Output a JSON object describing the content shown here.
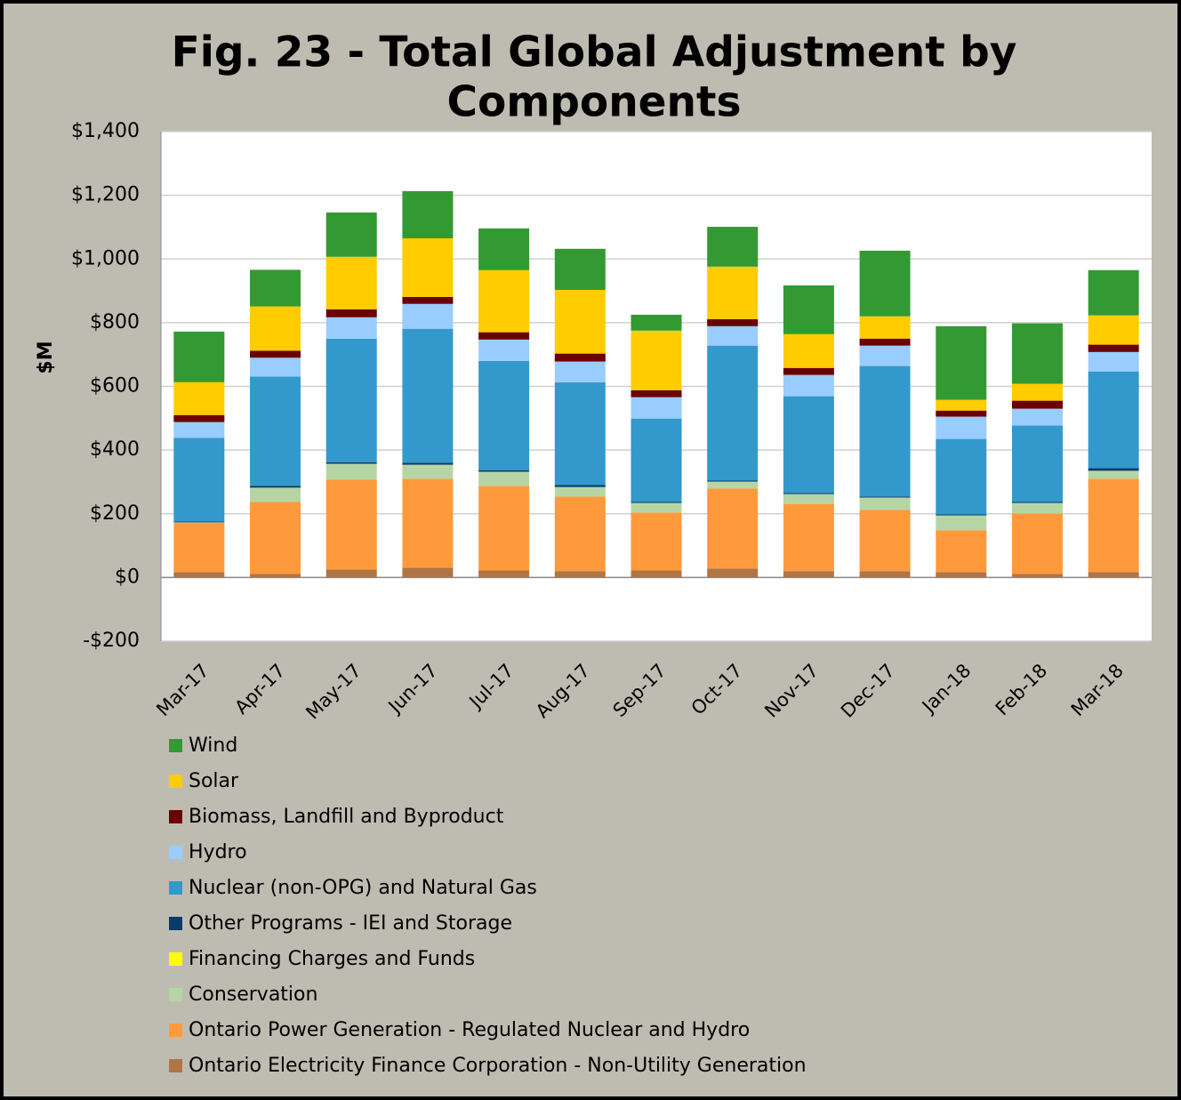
{
  "chart_data": {
    "type": "stacked_bar",
    "title": "Fig. 23 - Total Global Adjustment by",
    "title_line2": "Components",
    "y_label": "$M",
    "categories": [
      "Mar-17",
      "Apr-17",
      "May-17",
      "Jun-17",
      "Jul-17",
      "Aug-17",
      "Sep-17",
      "Oct-17",
      "Nov-17",
      "Dec-17",
      "Jan-18",
      "Feb-18",
      "Mar-18"
    ],
    "series": [
      {
        "name": "Ontario Electricity Finance Corporation - Non-Utility Generation",
        "color": "#b07545",
        "values": [
          17,
          11,
          25,
          31,
          22,
          20,
          22,
          28,
          20,
          20,
          17,
          11,
          17
        ]
      },
      {
        "name": "Ontario Power Generation - Regulated Nuclear and Hydro",
        "color": "#ff9a3c",
        "values": [
          153,
          226,
          282,
          279,
          265,
          234,
          182,
          251,
          211,
          192,
          131,
          190,
          293
        ]
      },
      {
        "name": "Conservation",
        "color": "#b5d6a4",
        "values": [
          3,
          45,
          50,
          44,
          45,
          30,
          30,
          22,
          31,
          39,
          47,
          33,
          25
        ]
      },
      {
        "name": "Financing Charges and Funds",
        "color": "#ffff00",
        "values": [
          0,
          0,
          0,
          0,
          0,
          0,
          0,
          0,
          0,
          0,
          0,
          0,
          0
        ]
      },
      {
        "name": "Other Programs - IEI and Storage",
        "color": "#0a3a6b",
        "values": [
          3,
          6,
          5,
          6,
          5,
          6,
          3,
          3,
          3,
          3,
          3,
          3,
          8
        ]
      },
      {
        "name": "Nuclear (non-OPG) and Natural Gas",
        "color": "#3399cc",
        "values": [
          262,
          343,
          388,
          421,
          343,
          323,
          262,
          424,
          304,
          410,
          237,
          240,
          304
        ]
      },
      {
        "name": "Hydro",
        "color": "#99ccff",
        "values": [
          50,
          59,
          67,
          78,
          67,
          65,
          67,
          61,
          67,
          64,
          70,
          53,
          61
        ]
      },
      {
        "name": "Biomass, Landfill and Byproduct",
        "color": "#6b0000",
        "values": [
          22,
          22,
          25,
          22,
          23,
          25,
          22,
          22,
          22,
          22,
          19,
          25,
          23
        ]
      },
      {
        "name": "Solar",
        "color": "#ffcc00",
        "values": [
          103,
          139,
          165,
          184,
          195,
          200,
          187,
          165,
          106,
          70,
          34,
          53,
          92
        ]
      },
      {
        "name": "Wind",
        "color": "#339933",
        "values": [
          159,
          115,
          139,
          148,
          131,
          129,
          50,
          125,
          153,
          206,
          231,
          190,
          142
        ]
      }
    ],
    "ylim": [
      -200,
      1400
    ],
    "yticks": [
      {
        "value": -200,
        "label": "-$200"
      },
      {
        "value": 0,
        "label": "$0"
      },
      {
        "value": 200,
        "label": "$200"
      },
      {
        "value": 400,
        "label": "$400"
      },
      {
        "value": 600,
        "label": "$600"
      },
      {
        "value": 800,
        "label": "$800"
      },
      {
        "value": 1000,
        "label": "$1,000"
      },
      {
        "value": 1200,
        "label": "$1,200"
      },
      {
        "value": 1400,
        "label": "$1,400"
      }
    ],
    "grid": true
  }
}
